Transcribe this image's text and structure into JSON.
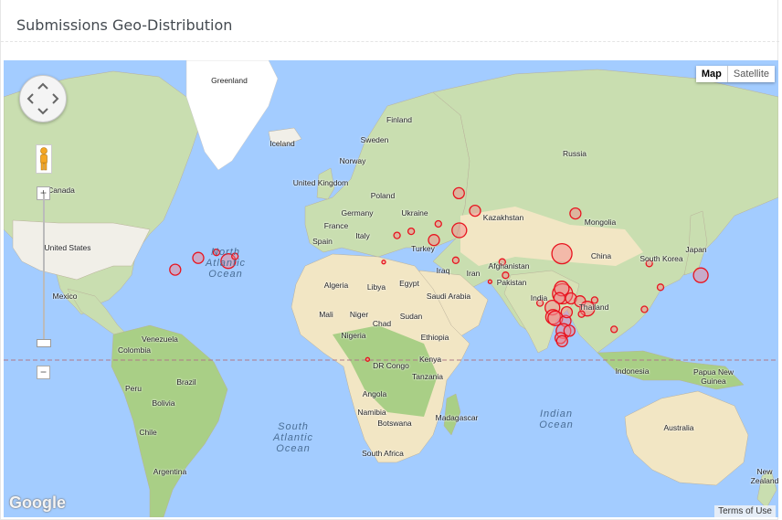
{
  "panel": {
    "title": "Submissions Geo-Distribution"
  },
  "map_type": {
    "map_label": "Map",
    "satellite_label": "Satellite",
    "selected": "Map"
  },
  "controls": {
    "zoom_in": "+",
    "zoom_out": "−",
    "attribution": "Google",
    "terms": "Terms of Use"
  },
  "icons": {
    "pan": "pan-control-icon",
    "pegman": "street-view-pegman-icon",
    "zoom": "zoom-slider"
  },
  "colors": {
    "water": "#a3ccff",
    "land": "#f1efe8",
    "vegetation": "#c9deb0",
    "desert": "#f2e6c4",
    "ice": "#ffffff",
    "marker_stroke": "#e8141f",
    "marker_fill": "#f4828a",
    "equator": "#b07a88"
  },
  "labels": {
    "greenland": "Greenland",
    "iceland": "Iceland",
    "finland": "Finland",
    "sweden": "Sweden",
    "norway": "Norway",
    "russia": "Russia",
    "uk": "United Kingdom",
    "poland": "Poland",
    "germany": "Germany",
    "ukraine": "Ukraine",
    "france": "France",
    "spain": "Spain",
    "italy": "Italy",
    "turkey": "Turkey",
    "kazakhstan": "Kazakhstan",
    "mongolia": "Mongolia",
    "china": "China",
    "japan": "Japan",
    "south_korea": "South Korea",
    "afghanistan": "Afghanistan",
    "iraq": "Iraq",
    "iran": "Iran",
    "pakistan": "Pakistan",
    "india": "India",
    "thailand": "Thailand",
    "saudi_arabia": "Saudi Arabia",
    "egypt": "Egypt",
    "libya": "Libya",
    "algeria": "Algeria",
    "mali": "Mali",
    "niger": "Niger",
    "chad": "Chad",
    "sudan": "Sudan",
    "nigeria": "Nigeria",
    "ethiopia": "Ethiopia",
    "kenya": "Kenya",
    "dr_congo": "DR Congo",
    "tanzania": "Tanzania",
    "angola": "Angola",
    "namibia": "Namibia",
    "botswana": "Botswana",
    "madagascar": "Madagascar",
    "south_africa": "South Africa",
    "canada": "Canada",
    "united_states": "United States",
    "mexico": "Mexico",
    "venezuela": "Venezuela",
    "colombia": "Colombia",
    "peru": "Peru",
    "brazil": "Brazil",
    "bolivia": "Bolivia",
    "chile": "Chile",
    "argentina": "Argentina",
    "indonesia": "Indonesia",
    "papua_new_guinea": "Papua New Guinea",
    "australia": "Australia",
    "new_zealand": "New Zealand"
  },
  "oceans": {
    "north_atlantic": "North Atlantic Ocean",
    "south_atlantic": "South Atlantic Ocean",
    "indian": "Indian Ocean"
  },
  "markers": [
    {
      "lat": 41.8,
      "lon": -87.6,
      "r": "md"
    },
    {
      "lat": 40.7,
      "lon": -74.0,
      "r": "lg"
    },
    {
      "lat": 42.3,
      "lon": -71.0,
      "r": "sm"
    },
    {
      "lat": 43.6,
      "lon": -79.4,
      "r": "sm"
    },
    {
      "lat": 37.7,
      "lon": -98.0,
      "r": "md"
    },
    {
      "lat": 59.9,
      "lon": 30.3,
      "r": "md"
    },
    {
      "lat": 55.7,
      "lon": 37.6,
      "r": "md"
    },
    {
      "lat": 52.2,
      "lon": 21.0,
      "r": "sm"
    },
    {
      "lat": 50.4,
      "lon": 30.5,
      "r": "lg"
    },
    {
      "lat": 48.9,
      "lon": 2.3,
      "r": "sm"
    },
    {
      "lat": 50.1,
      "lon": 8.7,
      "r": "sm"
    },
    {
      "lat": 47.5,
      "lon": 19.0,
      "r": "md"
    },
    {
      "lat": 40.4,
      "lon": -3.7,
      "r": "xs"
    },
    {
      "lat": 41.0,
      "lon": 28.9,
      "r": "sm"
    },
    {
      "lat": 55.0,
      "lon": 83.0,
      "r": "md"
    },
    {
      "lat": 43.2,
      "lon": 76.9,
      "r": "xl"
    },
    {
      "lat": 40.4,
      "lon": 49.9,
      "r": "sm"
    },
    {
      "lat": 35.7,
      "lon": 51.4,
      "r": "sm"
    },
    {
      "lat": 33.3,
      "lon": 44.4,
      "r": "xs"
    },
    {
      "lat": 39.9,
      "lon": 116.4,
      "r": "sm"
    },
    {
      "lat": 31.2,
      "lon": 121.5,
      "r": "sm"
    },
    {
      "lat": 35.7,
      "lon": 139.7,
      "r": "lg"
    },
    {
      "lat": 22.3,
      "lon": 114.2,
      "r": "sm"
    },
    {
      "lat": 13.7,
      "lon": 100.5,
      "r": "sm"
    },
    {
      "lat": 28.6,
      "lon": 77.2,
      "r": "xl"
    },
    {
      "lat": 30.7,
      "lon": 76.8,
      "r": "lg"
    },
    {
      "lat": 26.9,
      "lon": 75.8,
      "r": "md"
    },
    {
      "lat": 26.8,
      "lon": 81.0,
      "r": "md"
    },
    {
      "lat": 25.6,
      "lon": 85.1,
      "r": "md"
    },
    {
      "lat": 22.6,
      "lon": 88.4,
      "r": "lg"
    },
    {
      "lat": 23.0,
      "lon": 72.6,
      "r": "lg"
    },
    {
      "lat": 19.1,
      "lon": 72.9,
      "r": "lg"
    },
    {
      "lat": 18.5,
      "lon": 73.9,
      "r": "lg"
    },
    {
      "lat": 17.4,
      "lon": 78.5,
      "r": "md"
    },
    {
      "lat": 13.0,
      "lon": 77.6,
      "r": "lg"
    },
    {
      "lat": 13.1,
      "lon": 80.3,
      "r": "md"
    },
    {
      "lat": 9.9,
      "lon": 76.3,
      "r": "md"
    },
    {
      "lat": 21.1,
      "lon": 79.1,
      "r": "md"
    },
    {
      "lat": 20.3,
      "lon": 85.8,
      "r": "sm"
    },
    {
      "lat": 26.1,
      "lon": 91.7,
      "r": "sm"
    },
    {
      "lat": 24.9,
      "lon": 67.0,
      "r": "sm"
    },
    {
      "lat": 8.5,
      "lon": 77.0,
      "r": "md"
    },
    {
      "lat": 0.3,
      "lon": -11.0,
      "r": "xs"
    }
  ]
}
